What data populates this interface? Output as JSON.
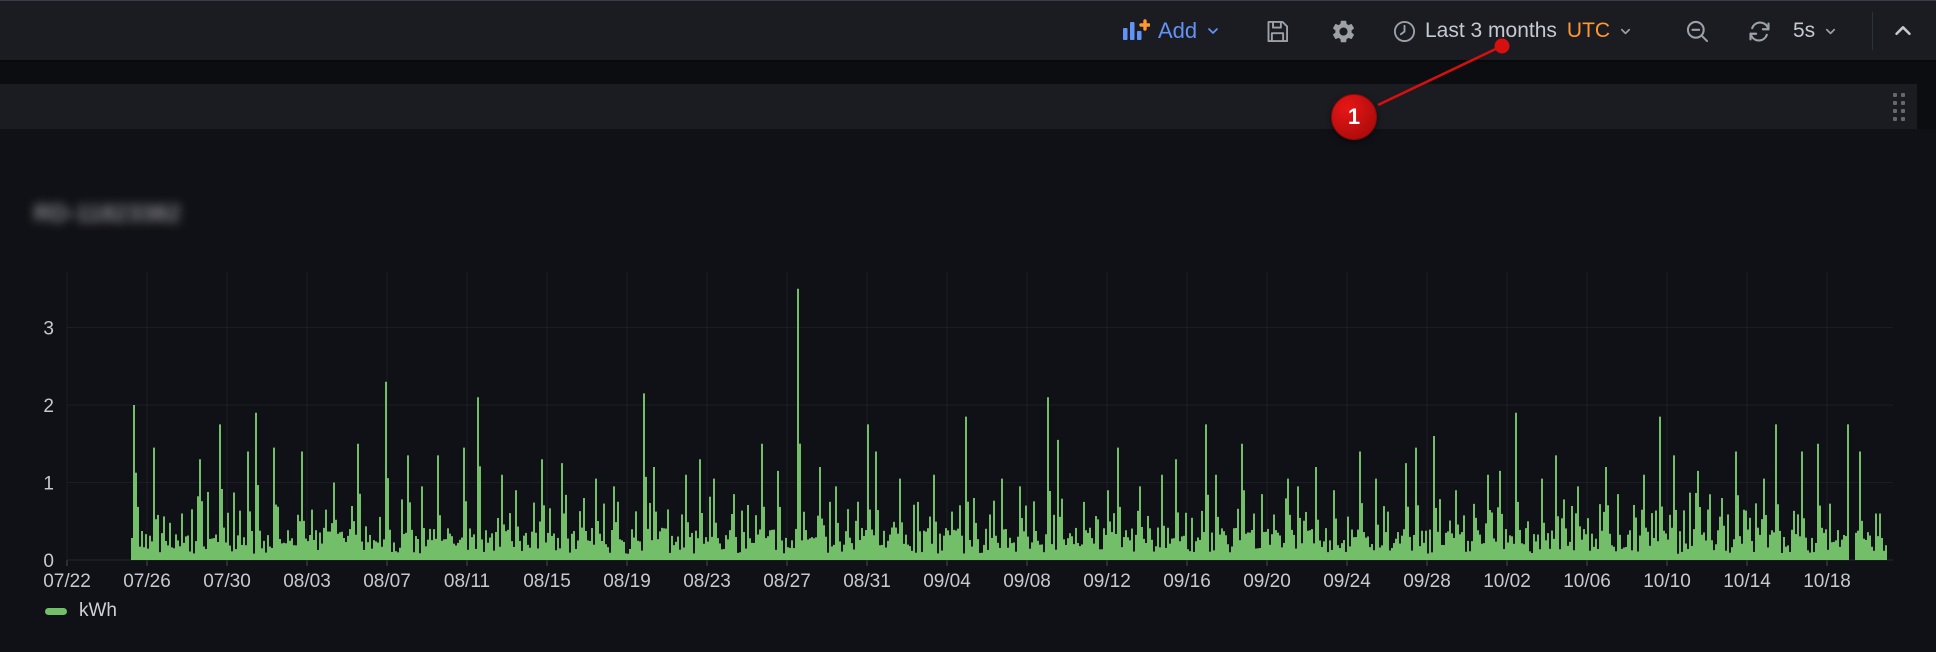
{
  "toolbar": {
    "add": {
      "label": "Add",
      "icon": "bar-chart-plus-icon",
      "accent_blue": "#6292f5",
      "plus_orange": "#ff9830"
    },
    "save_icon": "floppy-disk",
    "settings_icon": "gear",
    "time_picker": {
      "icon": "clock",
      "label": "Last 3 months",
      "timezone": "UTC",
      "timezone_color": "#ff9830"
    },
    "zoom_out_icon": "magnifier-minus",
    "refresh_icon": "circular-arrows",
    "refresh_interval": "5s",
    "collapse_icon": "chevron-up"
  },
  "panel": {
    "title_redacted": true,
    "title_blurred_placeholder": "RD-11823382",
    "drag_handle_icon": "dots-grid-2x4"
  },
  "annotation": {
    "step_number": "1",
    "color": "#d60f0f",
    "points_at": "time-range-picker"
  },
  "legend": {
    "series_label": "kWh",
    "swatch_color": "#73BF69"
  },
  "chart_data": {
    "type": "area",
    "title": "(panel title blurred/redacted)",
    "xlabel": "",
    "ylabel": "",
    "unit": "kWh",
    "grid": true,
    "legend_position": "bottom-left",
    "x_tick_labels": [
      "07/22",
      "07/26",
      "07/30",
      "08/03",
      "08/07",
      "08/11",
      "08/15",
      "08/19",
      "08/23",
      "08/27",
      "08/31",
      "09/04",
      "09/08",
      "09/12",
      "09/16",
      "09/20",
      "09/24",
      "09/28",
      "10/02",
      "10/06",
      "10/10",
      "10/14",
      "10/18"
    ],
    "y_ticks": [
      0,
      1,
      2,
      3
    ],
    "ylim": [
      0,
      3.7
    ],
    "time_range": "Last 3 months",
    "series": [
      {
        "name": "kWh",
        "color": "#73BF69",
        "description": "dense noisy baseline 0.1-0.45 kWh with one tall spike per day; values below are estimated daily peak kWh",
        "daily_peaks_start_date": "07/25",
        "daily_peaks": [
          2.0,
          1.45,
          0.6,
          1.3,
          1.75,
          1.4,
          1.9,
          1.45,
          1.4,
          0.65,
          1.0,
          1.5,
          2.3,
          1.35,
          0.95,
          1.35,
          1.45,
          2.1,
          1.1,
          0.9,
          1.3,
          1.25,
          0.8,
          1.05,
          0.95,
          2.15,
          1.2,
          1.1,
          1.3,
          1.05,
          0.85,
          1.5,
          1.15,
          3.5,
          1.2,
          0.95,
          1.75,
          1.4,
          1.05,
          0.75,
          1.1,
          1.85,
          0.8,
          1.05,
          0.95,
          2.1,
          1.55,
          0.75,
          0.9,
          1.45,
          0.95,
          1.1,
          1.3,
          1.75,
          1.1,
          1.5,
          0.85,
          1.05,
          0.95,
          1.2,
          0.9,
          1.4,
          1.05,
          1.25,
          1.45,
          1.6,
          0.9,
          1.1,
          1.15,
          1.9,
          1.05,
          1.35,
          0.95,
          1.2,
          0.85,
          1.1,
          1.85,
          1.35,
          1.15,
          0.8,
          1.4,
          1.05,
          1.75,
          1.4,
          1.5,
          1.75,
          1.4,
          0.6
        ],
        "baseline_noise": {
          "min": 0.08,
          "max": 0.42
        },
        "data_gap_day_index": 86
      }
    ]
  },
  "colors": {
    "toolbar_bg": "#1a1c22",
    "page_bg": "#0c0d10",
    "panel_strip_bg": "#1a1c21",
    "panel_body_bg": "#101116",
    "text_primary": "#c7c9d0",
    "axis_label": "#c8c9d0",
    "gridline": "rgba(204,204,220,0.07)",
    "green": "#73BF69",
    "red": "#d60f0f"
  }
}
